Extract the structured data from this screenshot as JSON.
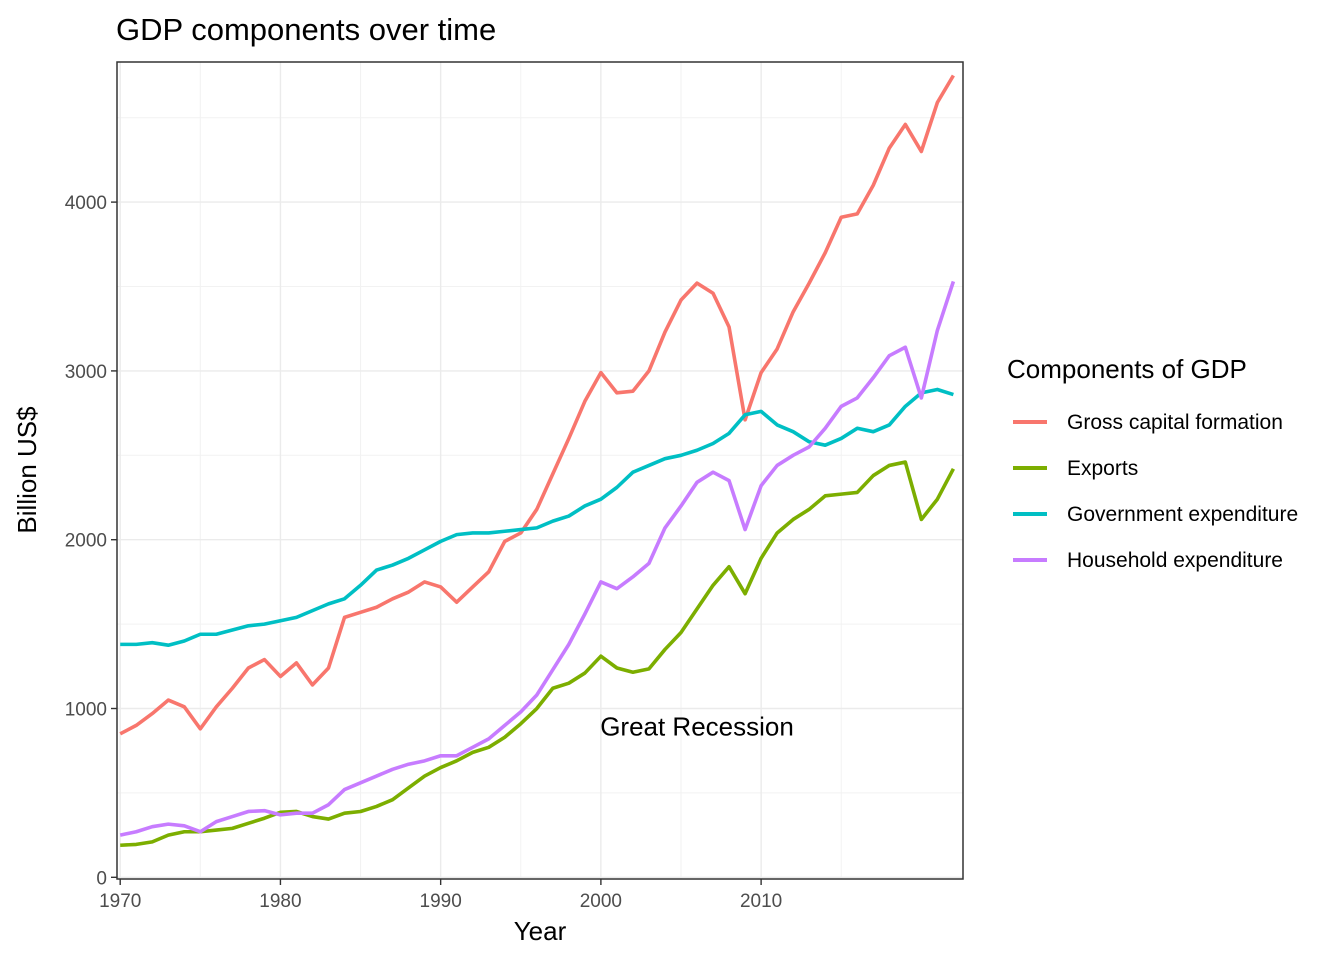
{
  "chart_data": {
    "type": "line",
    "title": "GDP components over time",
    "xlabel": "Year",
    "ylabel": "Billion US$",
    "xlim": [
      1969.8,
      2022.6
    ],
    "ylim": [
      -10,
      4830
    ],
    "x_ticks": [
      1970,
      1980,
      1990,
      2000,
      2010
    ],
    "y_ticks": [
      0,
      1000,
      2000,
      3000,
      4000
    ],
    "grid": true,
    "legend": {
      "title": "Components of GDP",
      "position": "right"
    },
    "annotation": {
      "text": "Great Recession",
      "x": 2006,
      "y": 840
    },
    "x": [
      1970,
      1971,
      1972,
      1973,
      1974,
      1975,
      1976,
      1977,
      1978,
      1979,
      1980,
      1981,
      1982,
      1983,
      1984,
      1985,
      1986,
      1987,
      1988,
      1989,
      1990,
      1991,
      1992,
      1993,
      1994,
      1995,
      1996,
      1997,
      1998,
      1999,
      2000,
      2001,
      2002,
      2003,
      2004,
      2005,
      2006,
      2007,
      2008,
      2009,
      2010,
      2011,
      2012,
      2013,
      2014,
      2015,
      2016,
      2017,
      2018,
      2019,
      2020,
      2021,
      2022
    ],
    "series": [
      {
        "name": "Gross capital formation",
        "color": "#F8766D",
        "values": [
          850,
          900,
          970,
          1050,
          1010,
          880,
          1010,
          1120,
          1240,
          1290,
          1190,
          1270,
          1140,
          1240,
          1540,
          1570,
          1600,
          1650,
          1690,
          1750,
          1720,
          1630,
          1720,
          1810,
          1990,
          2040,
          2180,
          2390,
          2600,
          2820,
          2990,
          2870,
          2880,
          3000,
          3230,
          3420,
          3520,
          3460,
          3260,
          2710,
          2990,
          3130,
          3350,
          3520,
          3700,
          3910,
          3930,
          4100,
          4320,
          4460,
          4300,
          4590,
          4750
        ]
      },
      {
        "name": "Exports",
        "color": "#7CAE00",
        "values": [
          190,
          195,
          210,
          250,
          270,
          270,
          280,
          290,
          320,
          350,
          385,
          390,
          360,
          345,
          380,
          390,
          420,
          460,
          530,
          600,
          650,
          690,
          740,
          770,
          830,
          910,
          1000,
          1120,
          1150,
          1210,
          1310,
          1240,
          1215,
          1235,
          1350,
          1450,
          1590,
          1730,
          1840,
          1680,
          1890,
          2040,
          2120,
          2180,
          2260,
          2270,
          2280,
          2380,
          2440,
          2460,
          2120,
          2240,
          2420
        ]
      },
      {
        "name": "Government expenditure",
        "color": "#00BFC4",
        "values": [
          1380,
          1380,
          1390,
          1375,
          1400,
          1440,
          1440,
          1465,
          1490,
          1500,
          1520,
          1540,
          1580,
          1620,
          1650,
          1730,
          1820,
          1850,
          1890,
          1940,
          1990,
          2030,
          2040,
          2040,
          2050,
          2060,
          2070,
          2110,
          2140,
          2200,
          2240,
          2310,
          2400,
          2440,
          2480,
          2500,
          2530,
          2570,
          2630,
          2740,
          2760,
          2680,
          2640,
          2580,
          2560,
          2600,
          2660,
          2640,
          2680,
          2790,
          2870,
          2890,
          2860
        ]
      },
      {
        "name": "Household expenditure",
        "color": "#C77CFF",
        "values": [
          250,
          270,
          300,
          315,
          305,
          270,
          330,
          360,
          390,
          395,
          370,
          380,
          380,
          430,
          520,
          560,
          600,
          640,
          670,
          690,
          720,
          720,
          770,
          820,
          900,
          980,
          1080,
          1230,
          1380,
          1560,
          1750,
          1710,
          1780,
          1860,
          2070,
          2200,
          2340,
          2400,
          2350,
          2060,
          2320,
          2440,
          2500,
          2550,
          2660,
          2790,
          2840,
          2960,
          3090,
          3140,
          2840,
          3240,
          3530
        ]
      }
    ]
  }
}
